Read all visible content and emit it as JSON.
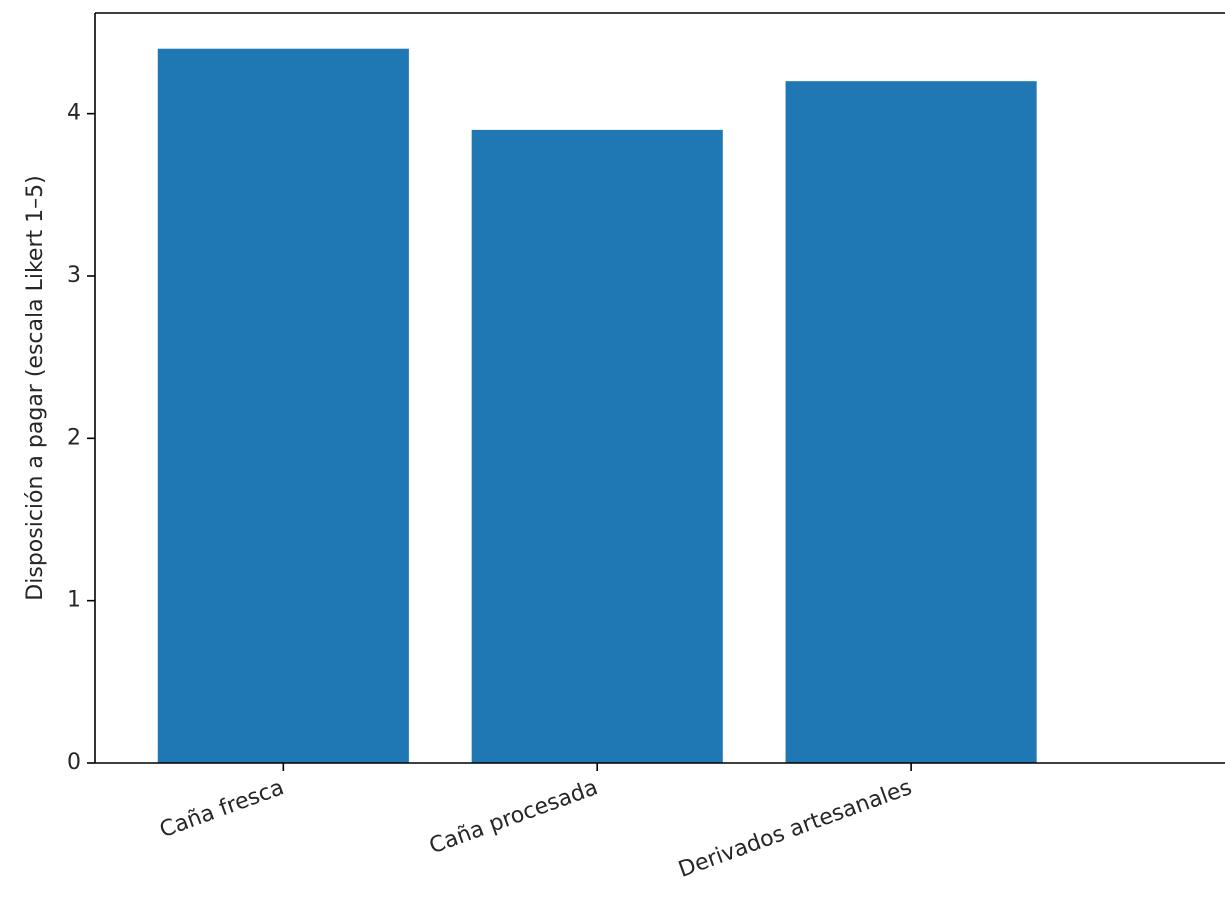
{
  "chart_data": {
    "type": "bar",
    "title": "",
    "xlabel": "",
    "ylabel": "Disposición a pagar (escala Likert 1–5)",
    "categories": [
      "Caña fresca",
      "Caña procesada",
      "Derivados artesanales"
    ],
    "values": [
      4.4,
      3.9,
      4.2
    ],
    "ylim": [
      0,
      4.62
    ],
    "yticks": [
      "0",
      "1",
      "2",
      "3",
      "4"
    ],
    "grid": false,
    "legend": "none",
    "bar_color": "#1f77b4"
  }
}
